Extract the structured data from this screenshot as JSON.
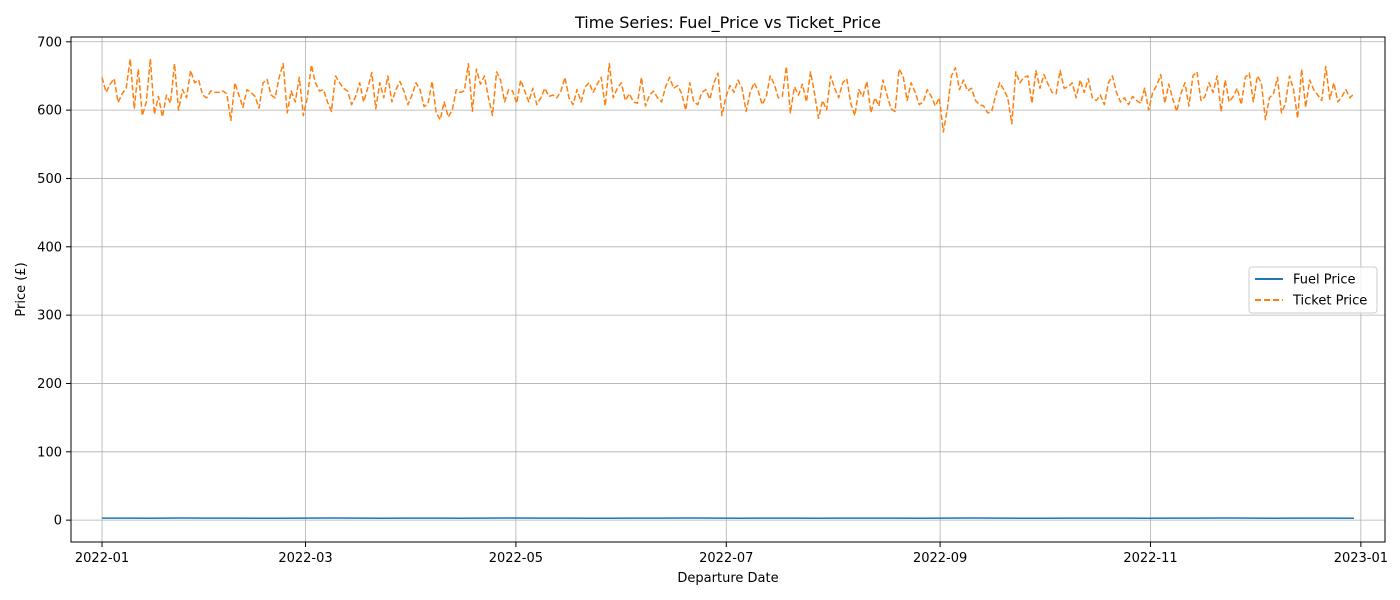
{
  "chart_data": {
    "type": "line",
    "title": "Time Series: Fuel_Price vs Ticket_Price",
    "xlabel": "Departure Date",
    "ylabel": "Price (£)",
    "x_range": [
      "2022-01-01",
      "2022-12-30"
    ],
    "xlim": [
      "2021-12-23",
      "2023-01-08"
    ],
    "ylim": [
      -32,
      707
    ],
    "x_ticks": [
      "2022-01",
      "2022-03",
      "2022-05",
      "2022-07",
      "2022-09",
      "2022-11",
      "2023-01"
    ],
    "x_tick_dates": [
      "2022-01-01",
      "2022-03-01",
      "2022-05-01",
      "2022-07-01",
      "2022-09-01",
      "2022-11-01",
      "2023-01-01"
    ],
    "y_ticks": [
      0,
      100,
      200,
      300,
      400,
      500,
      600,
      700
    ],
    "grid": true,
    "legend_position": "center-right",
    "series": [
      {
        "name": "Fuel Price",
        "color": "#1f77b4",
        "style": "solid",
        "values": [
          3.0,
          2.9,
          2.8,
          3.1,
          3.0,
          2.9,
          2.7,
          2.8,
          3.0,
          3.1,
          2.9,
          2.8,
          2.9,
          3.0,
          2.8,
          2.9,
          3.1,
          3.0,
          2.9,
          2.8,
          2.7,
          2.9,
          3.0,
          3.1,
          2.9,
          2.8,
          3.0,
          2.9,
          2.8,
          2.9,
          3.0,
          2.9,
          2.8,
          3.0,
          3.1,
          2.9,
          2.8,
          2.7,
          2.9,
          3.0,
          2.9,
          2.8,
          2.9,
          3.0,
          3.1,
          2.9,
          2.8,
          2.9,
          3.0,
          2.8
        ]
      },
      {
        "name": "Ticket Price",
        "color": "#ff7f0e",
        "style": "dashed",
        "values": [
          648,
          626,
          638,
          646,
          611,
          624,
          632,
          675,
          602,
          660,
          592,
          612,
          675,
          594,
          620,
          590,
          622,
          610,
          668,
          600,
          630,
          618,
          658,
          640,
          644,
          622,
          618,
          628,
          626,
          626,
          628,
          624,
          585,
          640,
          622,
          604,
          630,
          626,
          620,
          603,
          640,
          645,
          622,
          618,
          648,
          668,
          596,
          628,
          612,
          648,
          592,
          618,
          666,
          640,
          628,
          630,
          612,
          598,
          650,
          640,
          632,
          628,
          608,
          620,
          640,
          612,
          632,
          655,
          602,
          640,
          618,
          650,
          612,
          630,
          642,
          628,
          608,
          622,
          640,
          630,
          605,
          610,
          642,
          596,
          586,
          612,
          590,
          600,
          630,
          626,
          628,
          668,
          598,
          660,
          638,
          650,
          618,
          592,
          656,
          644,
          612,
          630,
          628,
          610,
          644,
          628,
          612,
          632,
          608,
          618,
          632,
          620,
          622,
          618,
          628,
          648,
          618,
          608,
          630,
          612,
          634,
          640,
          626,
          638,
          648,
          606,
          668,
          618,
          632,
          640,
          614,
          624,
          612,
          610,
          648,
          606,
          622,
          628,
          618,
          612,
          634,
          648,
          632,
          636,
          624,
          600,
          640,
          612,
          608,
          626,
          630,
          616,
          640,
          654,
          592,
          620,
          636,
          626,
          644,
          632,
          598,
          626,
          640,
          628,
          608,
          620,
          650,
          638,
          618,
          620,
          664,
          596,
          634,
          622,
          638,
          612,
          656,
          624,
          588,
          614,
          600,
          650,
          632,
          618,
          640,
          646,
          610,
          592,
          630,
          620,
          642,
          596,
          618,
          606,
          644,
          622,
          602,
          598,
          660,
          650,
          614,
          640,
          626,
          608,
          612,
          630,
          620,
          606,
          618,
          568,
          602,
          650,
          662,
          630,
          644,
          628,
          632,
          614,
          608,
          606,
          596,
          598,
          622,
          640,
          630,
          618,
          580,
          656,
          640,
          648,
          650,
          610,
          658,
          632,
          652,
          638,
          626,
          624,
          658,
          632,
          634,
          640,
          618,
          644,
          626,
          646,
          618,
          614,
          622,
          608,
          640,
          650,
          626,
          612,
          618,
          608,
          620,
          614,
          610,
          632,
          600,
          626,
          636,
          652,
          610,
          638,
          616,
          598,
          624,
          640,
          606,
          650,
          656,
          614,
          620,
          640,
          626,
          650,
          598,
          644,
          612,
          620,
          632,
          608,
          648,
          654,
          612,
          650,
          640,
          586,
          618,
          624,
          648,
          596,
          610,
          650,
          630,
          588,
          660,
          604,
          644,
          630,
          622,
          614,
          664,
          616,
          640,
          612,
          620,
          630,
          618,
          624
        ]
      }
    ]
  }
}
